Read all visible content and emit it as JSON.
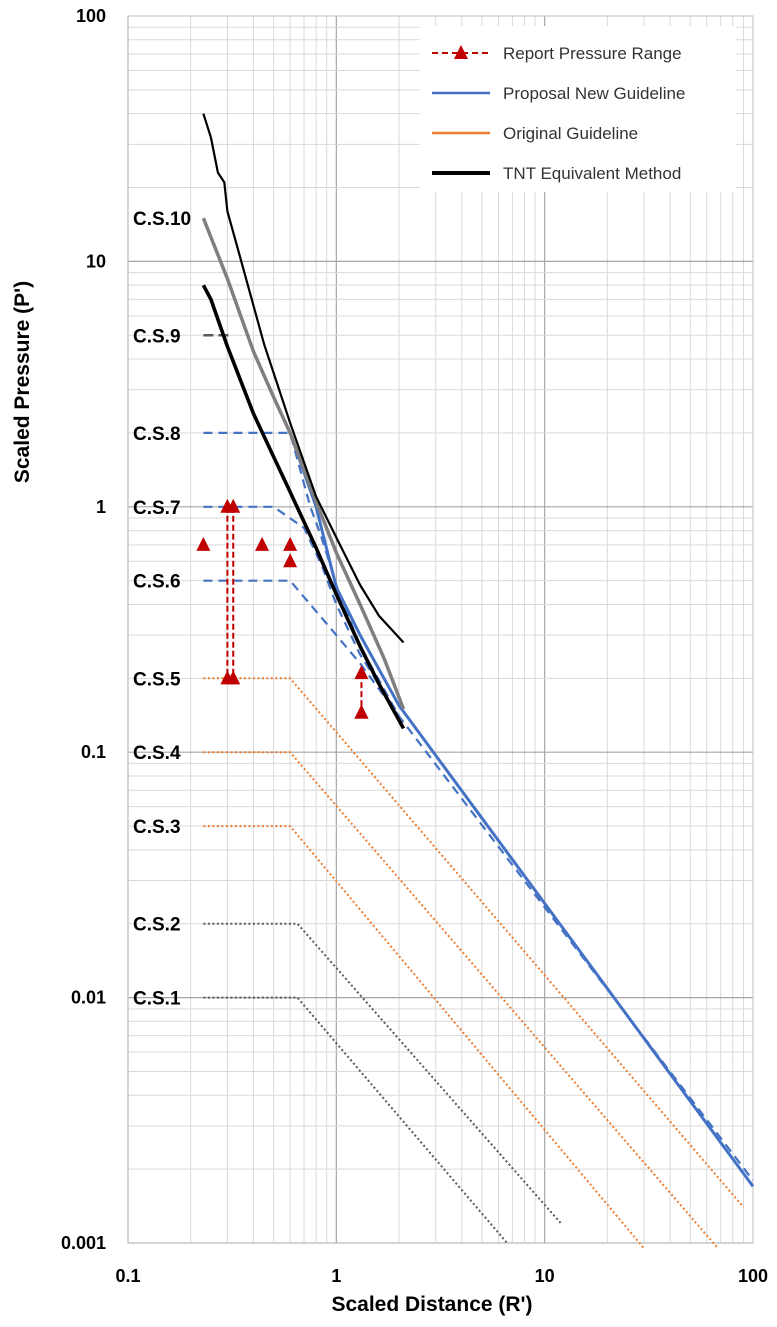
{
  "chart_data": {
    "type": "line",
    "xscale": "log",
    "yscale": "log",
    "xlim": [
      0.1,
      100
    ],
    "ylim": [
      0.001,
      100
    ],
    "xlabel": "Scaled Distance (R')",
    "ylabel": "Scaled Pressure (P')",
    "x_ticks": [
      {
        "value": 0.1,
        "label": "0.1"
      },
      {
        "value": 1,
        "label": "1"
      },
      {
        "value": 10,
        "label": "10"
      },
      {
        "value": 100,
        "label": "100"
      }
    ],
    "y_ticks": [
      {
        "value": 100,
        "label": "100"
      },
      {
        "value": 10,
        "label": "10"
      },
      {
        "value": 1,
        "label": "1"
      },
      {
        "value": 0.1,
        "label": "0.1"
      },
      {
        "value": 0.01,
        "label": "0.01"
      },
      {
        "value": 0.001,
        "label": "0.001"
      }
    ],
    "grid": true,
    "legend_position": "top-right",
    "legend": [
      {
        "name": "Report Pressure Range",
        "color": "#c00000",
        "style": "dashed-triangle"
      },
      {
        "name": "Proposal New Guideline",
        "color": "#4472c4",
        "style": "solid"
      },
      {
        "name": "Original Guideline",
        "color": "#ed7d31",
        "style": "solid"
      },
      {
        "name": "TNT Equivalent Method",
        "color": "#000000",
        "style": "solid-thick"
      }
    ],
    "colors": {
      "tnt": "#000000",
      "cs10": "#7f7f7f",
      "cs9": "#595959",
      "proposal": "#4472c4",
      "original": "#ed7d31",
      "grey_dotted": "#595959",
      "report": "#c00000"
    },
    "curves": {
      "tnt_upper": {
        "x": [
          0.23,
          0.25,
          0.27,
          0.29,
          0.3,
          0.35,
          0.45,
          0.6,
          0.8,
          1.0,
          1.3,
          1.6,
          2.1
        ],
        "y": [
          40,
          32,
          23,
          21,
          16,
          10,
          4.6,
          2.2,
          1.1,
          0.75,
          0.48,
          0.36,
          0.28
        ]
      },
      "tnt_main": {
        "x": [
          0.23,
          0.25,
          0.3,
          0.4,
          0.5,
          0.6,
          0.8,
          1.0,
          1.3,
          1.6,
          2.1
        ],
        "y": [
          8,
          7,
          4.5,
          2.4,
          1.6,
          1.15,
          0.68,
          0.44,
          0.27,
          0.19,
          0.125
        ]
      },
      "cs10": {
        "x": [
          0.23,
          0.3,
          0.4,
          0.5,
          0.6,
          0.8,
          1.0,
          1.3,
          1.7,
          2.1
        ],
        "y": [
          15,
          8.5,
          4.3,
          2.8,
          2.0,
          1.05,
          0.65,
          0.4,
          0.24,
          0.15
        ]
      },
      "proposal_main": {
        "x": [
          0.6,
          0.8,
          1.0,
          1.3,
          2.0,
          100
        ],
        "y": [
          2.0,
          1.0,
          0.47,
          0.3,
          0.155,
          0.0017
        ]
      },
      "proposal_cs8": {
        "x": [
          0.23,
          0.6,
          0.75,
          0.85,
          1.0,
          1.3,
          2.0,
          100
        ],
        "y": [
          2.0,
          2.0,
          1.0,
          0.75,
          0.48,
          0.27,
          0.14,
          0.0018
        ]
      },
      "proposal_cs7": {
        "x": [
          0.23,
          0.5,
          0.7,
          0.85,
          1.0,
          1.3,
          2.0
        ],
        "y": [
          1.0,
          1.0,
          0.82,
          0.58,
          0.4,
          0.25,
          0.14
        ]
      },
      "proposal_cs6": {
        "x": [
          0.23,
          0.6,
          0.75,
          1.0,
          1.3,
          2.0
        ],
        "y": [
          0.5,
          0.5,
          0.4,
          0.3,
          0.23,
          0.14
        ]
      },
      "cs9_line": {
        "x": [
          0.23,
          0.32
        ],
        "y": [
          5,
          5
        ]
      },
      "cs5": {
        "x": [
          0.23,
          0.6,
          90
        ],
        "y": [
          0.2,
          0.2,
          0.0014
        ]
      },
      "cs4": {
        "x": [
          0.23,
          0.6,
          68
        ],
        "y": [
          0.1,
          0.1,
          0.00095
        ]
      },
      "cs3": {
        "x": [
          0.23,
          0.6,
          30
        ],
        "y": [
          0.05,
          0.05,
          0.00095
        ]
      },
      "cs2": {
        "x": [
          0.23,
          0.65,
          12
        ],
        "y": [
          0.02,
          0.02,
          0.0012
        ]
      },
      "cs1": {
        "x": [
          0.23,
          0.65,
          6.6
        ],
        "y": [
          0.01,
          0.01,
          0.001
        ]
      }
    },
    "report_points": [
      {
        "x": 0.23,
        "y": 0.7
      },
      {
        "x": 0.44,
        "y": 0.7
      },
      {
        "x": 0.6,
        "y": 0.7
      },
      {
        "x": 0.6,
        "y": 0.6
      },
      {
        "x": 1.32,
        "y": 0.145
      }
    ],
    "report_ranges": [
      {
        "x": 0.3,
        "y1": 1.0,
        "y2": 0.2
      },
      {
        "x": 0.32,
        "y1": 1.0,
        "y2": 0.2
      },
      {
        "x": 1.32,
        "y1": 0.21,
        "y2": 0.145
      }
    ],
    "cs_labels": [
      {
        "label": "C.S.10",
        "y": 15
      },
      {
        "label": "C.S.9",
        "y": 5
      },
      {
        "label": "C.S.8",
        "y": 2
      },
      {
        "label": "C.S.7",
        "y": 1
      },
      {
        "label": "C.S.6",
        "y": 0.5
      },
      {
        "label": "C.S.5",
        "y": 0.2
      },
      {
        "label": "C.S.4",
        "y": 0.1
      },
      {
        "label": "C.S.3",
        "y": 0.05
      },
      {
        "label": "C.S.2",
        "y": 0.02
      },
      {
        "label": "C.S.1",
        "y": 0.01
      }
    ]
  }
}
